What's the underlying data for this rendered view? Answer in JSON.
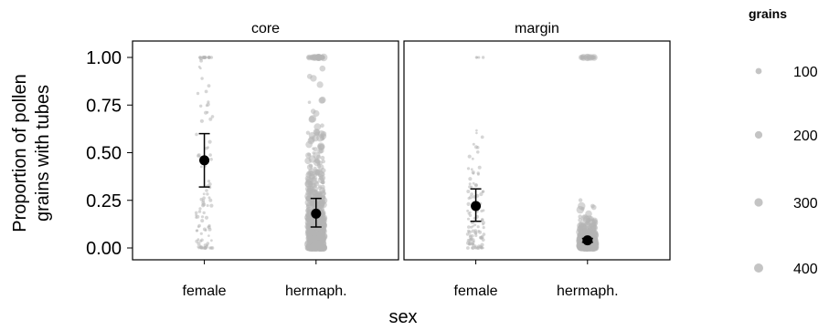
{
  "chart_data": {
    "type": "scatter",
    "facet_variable_label": "",
    "facets": [
      {
        "name": "core",
        "categories": [
          "female",
          "hermaph."
        ],
        "means": [
          {
            "category": "female",
            "mean": 0.46,
            "lower": 0.32,
            "upper": 0.6
          },
          {
            "category": "hermaph.",
            "mean": 0.18,
            "lower": 0.11,
            "upper": 0.26
          }
        ]
      },
      {
        "name": "margin",
        "categories": [
          "female",
          "hermaph."
        ],
        "means": [
          {
            "category": "female",
            "mean": 0.22,
            "lower": 0.14,
            "upper": 0.31
          },
          {
            "category": "hermaph.",
            "mean": 0.04,
            "lower": 0.03,
            "upper": 0.05
          }
        ]
      }
    ],
    "xlabel": "sex",
    "ylabel_lines": [
      "Proportion of pollen",
      "grains with tubes"
    ],
    "ylim": [
      0,
      1
    ],
    "yticks": [
      {
        "value": 0.0,
        "label": "0.00"
      },
      {
        "value": 0.25,
        "label": "0.25"
      },
      {
        "value": 0.5,
        "label": "0.50"
      },
      {
        "value": 0.75,
        "label": "0.75"
      },
      {
        "value": 1.0,
        "label": "1.00"
      }
    ],
    "legend": {
      "title": "grains",
      "placement": "right",
      "entries": [
        {
          "label": "100",
          "value": 100
        },
        {
          "label": "200",
          "value": 200
        },
        {
          "label": "300",
          "value": 300
        },
        {
          "label": "400",
          "value": 400
        }
      ]
    },
    "colors": {
      "points": "#b5b5b5",
      "means": "#000000",
      "panel_border": "#000000"
    }
  }
}
